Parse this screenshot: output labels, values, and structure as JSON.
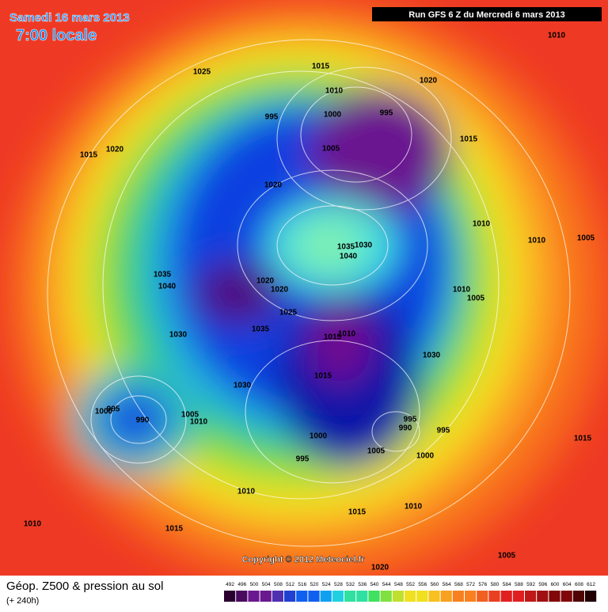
{
  "header": {
    "date": "Samedi 16 mars 2013",
    "time": "7:00 locale",
    "run": "Run GFS 6 Z du Mercredi 6 mars 2013"
  },
  "isobars": [
    1010,
    1025,
    1015,
    1020,
    1010,
    995,
    1000,
    995,
    1005,
    1015,
    1020,
    1015,
    1020,
    1010,
    1010,
    1005,
    1035,
    1030,
    1040,
    1035,
    1040,
    1020,
    1020,
    1010,
    1005,
    1025,
    1035,
    1015,
    1010,
    1030,
    1030,
    1015,
    1030,
    1000,
    995,
    990,
    1005,
    1010,
    995,
    990,
    995,
    1000,
    995,
    1005,
    1000,
    1015,
    1010,
    1010,
    1015,
    1010,
    1015,
    1005,
    1020
  ],
  "footer": {
    "copyright": "Copyright © 2012 Meteociel.fr",
    "title": "Géop. Z500 & pression au sol",
    "subtitle": "(+ 240h)"
  },
  "scale": {
    "labels": [
      492,
      496,
      500,
      504,
      508,
      512,
      516,
      520,
      524,
      528,
      532,
      536,
      540,
      544,
      548,
      552,
      556,
      560,
      564,
      568,
      572,
      576,
      580,
      584,
      588,
      592,
      596,
      600,
      604,
      608,
      612
    ]
  }
}
